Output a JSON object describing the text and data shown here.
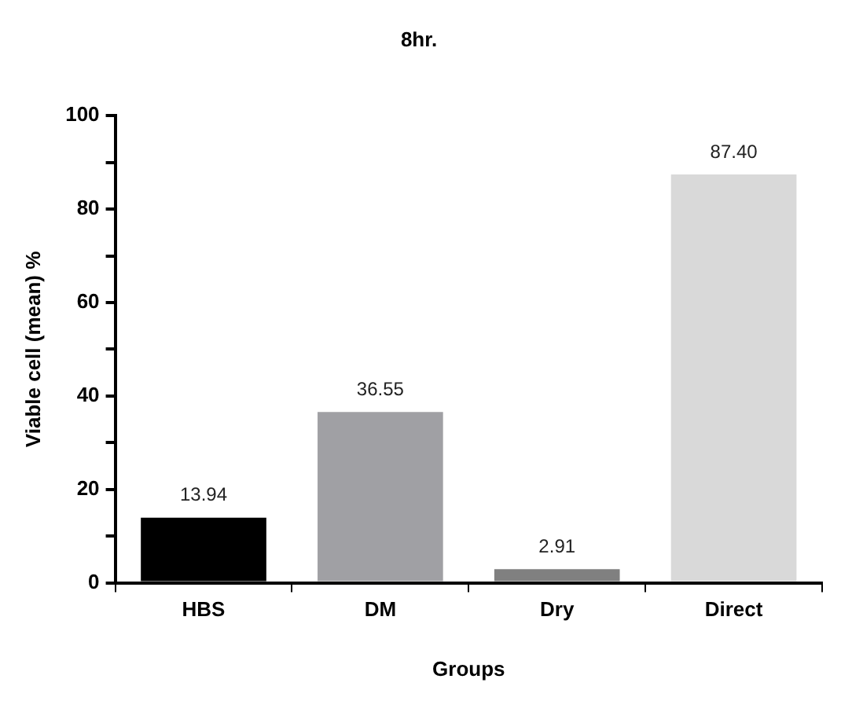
{
  "chart_data": {
    "type": "bar",
    "title": "8hr.",
    "xlabel": "Groups",
    "ylabel": "Viable cell (mean) %",
    "categories": [
      "HBS",
      "DM",
      "Dry",
      "Direct"
    ],
    "values": [
      13.94,
      36.55,
      2.91,
      87.4
    ],
    "colors": [
      "#000000",
      "#a0a0a4",
      "#808080",
      "#d9d9d9"
    ],
    "value_labels": [
      "13.94",
      "36.55",
      "2.91",
      "87.40"
    ],
    "ylim": [
      0,
      100
    ],
    "yticks": [
      0,
      {
        "value": 10,
        "label": null
      },
      20,
      {
        "value": 30,
        "label": null
      },
      40,
      {
        "value": 50,
        "label": null
      },
      60,
      {
        "value": 70,
        "label": null
      },
      80,
      {
        "value": 90,
        "label": null
      },
      100
    ],
    "grid": false
  }
}
